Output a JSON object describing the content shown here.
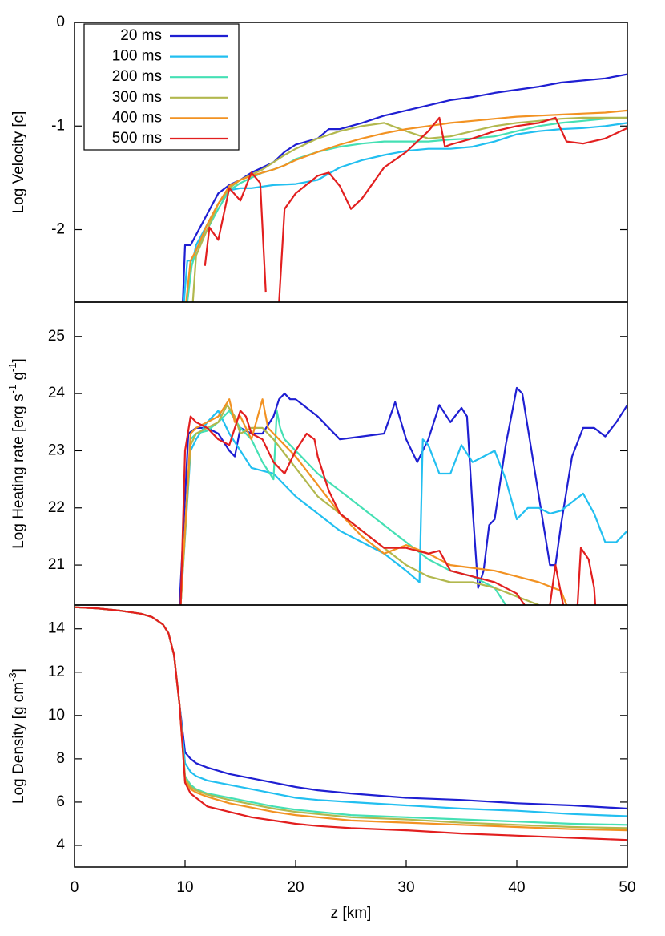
{
  "chart_data": [
    {
      "type": "line",
      "ylabel": "Log Velocity [c]",
      "xlim": [
        0,
        50
      ],
      "ylim": [
        -2.7,
        0
      ],
      "yticks": [
        0,
        -1,
        -2
      ],
      "legend": "upper left",
      "series": [
        {
          "name": "20 ms",
          "color": "#1f1fd2",
          "x": [
            9.8,
            10,
            10.5,
            11,
            12,
            13,
            14,
            15,
            16,
            17,
            18,
            19,
            20,
            22,
            23,
            24,
            26,
            28,
            30,
            32,
            34,
            36,
            38,
            40,
            42,
            44,
            46,
            48,
            50
          ],
          "values": [
            -2.7,
            -2.15,
            -2.15,
            -2.05,
            -1.85,
            -1.65,
            -1.57,
            -1.52,
            -1.45,
            -1.4,
            -1.35,
            -1.25,
            -1.18,
            -1.12,
            -1.03,
            -1.03,
            -0.97,
            -0.9,
            -0.85,
            -0.8,
            -0.75,
            -0.72,
            -0.68,
            -0.65,
            -0.62,
            -0.58,
            -0.56,
            -0.54,
            -0.5
          ]
        },
        {
          "name": "100 ms",
          "color": "#22bff0",
          "x": [
            9.9,
            10.2,
            10.7,
            11,
            12,
            13,
            14,
            15,
            16,
            18,
            20,
            22,
            24,
            26,
            28,
            30,
            32,
            34,
            36,
            38,
            40,
            42,
            44,
            46,
            48,
            50
          ],
          "values": [
            -2.7,
            -2.3,
            -2.3,
            -2.15,
            -1.95,
            -1.75,
            -1.62,
            -1.6,
            -1.6,
            -1.57,
            -1.56,
            -1.52,
            -1.4,
            -1.33,
            -1.28,
            -1.24,
            -1.22,
            -1.22,
            -1.2,
            -1.15,
            -1.08,
            -1.05,
            -1.03,
            -1.02,
            -1.0,
            -0.97
          ]
        },
        {
          "name": "200 ms",
          "color": "#45e0b4",
          "x": [
            10.2,
            10.6,
            11,
            12,
            13,
            14,
            15,
            16,
            17,
            18,
            19,
            20,
            22,
            24,
            26,
            28,
            30,
            32,
            34,
            36,
            38,
            40,
            42,
            44,
            46,
            48,
            50
          ],
          "values": [
            -2.7,
            -2.35,
            -2.2,
            -2.0,
            -1.8,
            -1.62,
            -1.55,
            -1.5,
            -1.45,
            -1.42,
            -1.38,
            -1.32,
            -1.25,
            -1.2,
            -1.17,
            -1.15,
            -1.15,
            -1.15,
            -1.13,
            -1.12,
            -1.1,
            -1.05,
            -1.0,
            -0.97,
            -0.95,
            -0.93,
            -0.92
          ]
        },
        {
          "name": "300 ms",
          "color": "#b2b84e",
          "x": [
            10.7,
            11,
            12,
            13,
            14,
            15,
            16,
            17,
            18,
            19,
            20,
            22,
            24,
            26,
            28,
            30,
            32,
            34,
            36,
            38,
            40,
            42,
            44,
            46,
            48,
            50
          ],
          "values": [
            -2.7,
            -2.25,
            -2.0,
            -1.75,
            -1.6,
            -1.52,
            -1.47,
            -1.42,
            -1.35,
            -1.28,
            -1.22,
            -1.12,
            -1.05,
            -1.0,
            -0.97,
            -1.05,
            -1.12,
            -1.1,
            -1.05,
            -1.0,
            -0.97,
            -0.95,
            -0.93,
            -0.92,
            -0.92,
            -0.92
          ]
        },
        {
          "name": "400 ms",
          "color": "#f29222",
          "x": [
            10.1,
            10.5,
            11,
            12,
            13,
            14,
            15,
            16,
            17,
            18,
            19,
            20,
            22,
            24,
            26,
            28,
            30,
            32,
            34,
            36,
            38,
            40,
            42,
            44,
            46,
            48,
            50
          ],
          "values": [
            -2.7,
            -2.3,
            -2.2,
            -1.95,
            -1.75,
            -1.58,
            -1.52,
            -1.48,
            -1.45,
            -1.42,
            -1.38,
            -1.33,
            -1.25,
            -1.18,
            -1.12,
            -1.07,
            -1.03,
            -1.0,
            -0.97,
            -0.95,
            -0.93,
            -0.91,
            -0.9,
            -0.89,
            -0.88,
            -0.87,
            -0.85
          ]
        },
        {
          "name": "500 ms",
          "color": "#e21f1f",
          "x": [
            11.8,
            12.2,
            13,
            14,
            15,
            16,
            16.8,
            17.3,
            17.4,
            18.5,
            19,
            20,
            22,
            23,
            24,
            25,
            26,
            28,
            30,
            32,
            33,
            33.5,
            34,
            36,
            38,
            40,
            42,
            43.5,
            44.5,
            46,
            48,
            50
          ],
          "values": [
            -2.35,
            -1.98,
            -2.1,
            -1.6,
            -1.72,
            -1.45,
            -1.55,
            -2.6,
            null,
            -2.7,
            -1.8,
            -1.65,
            -1.48,
            -1.45,
            -1.58,
            -1.8,
            -1.7,
            -1.4,
            -1.25,
            -1.05,
            -0.92,
            -1.2,
            -1.18,
            -1.12,
            -1.05,
            -1.0,
            -0.97,
            -0.92,
            -1.15,
            -1.17,
            -1.12,
            -1.02
          ]
        }
      ]
    },
    {
      "type": "line",
      "ylabel": [
        "Log Heating rate [erg s",
        "-1",
        " g",
        "-1",
        "]"
      ],
      "xlim": [
        0,
        50
      ],
      "ylim": [
        20.3,
        25.6
      ],
      "yticks": [
        21,
        22,
        23,
        24,
        25
      ],
      "series": [
        {
          "color": "#1f1fd2",
          "x": [
            9.5,
            10.3,
            11,
            12,
            13,
            14,
            14.5,
            15,
            16,
            17,
            18,
            18.5,
            19,
            19.5,
            20,
            22,
            24,
            26,
            28,
            29,
            30,
            31,
            32,
            33,
            34,
            35,
            35.5,
            36,
            36.5,
            37,
            37.5,
            38,
            39,
            40,
            40.5,
            41,
            42,
            43,
            43.5,
            44,
            45,
            46,
            47,
            48,
            49,
            50
          ],
          "values": [
            20.3,
            23.3,
            23.4,
            23.4,
            23.3,
            23.0,
            22.9,
            23.4,
            23.3,
            23.3,
            23.6,
            23.9,
            24.0,
            23.9,
            23.9,
            23.6,
            23.2,
            23.25,
            23.3,
            23.85,
            23.2,
            22.8,
            23.2,
            23.8,
            23.5,
            23.75,
            23.6,
            22.0,
            20.6,
            20.9,
            21.7,
            21.8,
            23.1,
            24.1,
            24.0,
            23.4,
            22.2,
            21.0,
            21.0,
            21.7,
            22.9,
            23.4,
            23.4,
            23.25,
            23.5,
            23.8
          ]
        },
        {
          "color": "#22bff0",
          "x": [
            9.6,
            10.5,
            11,
            12,
            13,
            14,
            15,
            16,
            17,
            18,
            20,
            22,
            24,
            26,
            28,
            30,
            31.2,
            31.5,
            32,
            33,
            34,
            35,
            36,
            37,
            38,
            39,
            40,
            41,
            42,
            43,
            44,
            45,
            46,
            47,
            48,
            49,
            50
          ],
          "values": [
            20.3,
            23.0,
            23.2,
            23.5,
            23.7,
            23.3,
            23.0,
            22.7,
            22.65,
            22.6,
            22.2,
            21.9,
            21.6,
            21.4,
            21.2,
            20.9,
            20.7,
            23.2,
            23.1,
            22.6,
            22.6,
            23.1,
            22.8,
            22.9,
            23.0,
            22.5,
            21.8,
            22.0,
            22.0,
            21.9,
            21.95,
            22.1,
            22.25,
            21.9,
            21.4,
            21.4,
            21.6
          ]
        },
        {
          "color": "#45e0b4",
          "x": [
            9.6,
            10.5,
            11,
            12,
            13,
            14,
            15,
            16,
            17,
            18,
            18.3,
            18.6,
            19,
            20,
            22,
            24,
            26,
            28,
            30,
            32,
            34,
            36,
            38,
            39
          ],
          "values": [
            20.3,
            23.2,
            23.3,
            23.35,
            23.5,
            23.7,
            23.4,
            23.2,
            22.8,
            22.5,
            23.7,
            23.4,
            23.2,
            23.0,
            22.6,
            22.3,
            22.0,
            21.7,
            21.4,
            21.1,
            20.9,
            20.8,
            20.6,
            20.3
          ]
        },
        {
          "color": "#b2b84e",
          "x": [
            9.6,
            10.5,
            11,
            12,
            13,
            13.8,
            14.5,
            15,
            16,
            17,
            18,
            20,
            22,
            24,
            26,
            28,
            30,
            32,
            34,
            36,
            38,
            40,
            42
          ],
          "values": [
            20.3,
            23.1,
            23.3,
            23.4,
            23.5,
            23.8,
            23.6,
            23.3,
            23.4,
            23.4,
            23.2,
            22.7,
            22.2,
            21.9,
            21.6,
            21.3,
            21.0,
            20.8,
            20.7,
            20.7,
            20.6,
            20.45,
            20.3
          ]
        },
        {
          "color": "#f29222",
          "x": [
            9.6,
            10.5,
            11,
            12,
            13,
            14,
            14.5,
            15,
            16,
            17,
            17.5,
            18,
            19,
            20,
            22,
            24,
            26,
            28,
            30,
            32,
            34,
            36,
            38,
            40,
            42,
            44,
            44.5
          ],
          "values": [
            20.3,
            23.3,
            23.4,
            23.5,
            23.6,
            23.9,
            23.5,
            23.6,
            23.2,
            23.9,
            23.4,
            23.3,
            23.1,
            22.9,
            22.4,
            21.9,
            21.5,
            21.2,
            21.35,
            21.2,
            21.0,
            20.95,
            20.9,
            20.8,
            20.7,
            20.55,
            20.3
          ]
        },
        {
          "color": "#e21f1f",
          "x": [
            9.6,
            10,
            10.5,
            11,
            12,
            13,
            14,
            15,
            15.5,
            16,
            17,
            18,
            19,
            20,
            21,
            21.7,
            22,
            23,
            24,
            26,
            28,
            30,
            32,
            33,
            34,
            36,
            38,
            40,
            40.7,
            41,
            43,
            43.5,
            44.2,
            44.5,
            45.5,
            45.8,
            46.5,
            47,
            47.1
          ],
          "values": [
            20.3,
            23.0,
            23.6,
            23.5,
            23.4,
            23.2,
            23.1,
            23.7,
            23.6,
            23.3,
            23.2,
            22.8,
            22.6,
            23.0,
            23.3,
            23.2,
            22.9,
            22.3,
            21.9,
            21.6,
            21.3,
            21.3,
            21.2,
            21.25,
            20.9,
            20.8,
            20.7,
            20.5,
            20.3,
            null,
            20.3,
            21.0,
            20.3,
            null,
            20.3,
            21.3,
            21.1,
            20.6,
            20.3
          ]
        }
      ]
    },
    {
      "type": "line",
      "ylabel": [
        "Log Density [g cm",
        "-3",
        "]"
      ],
      "xlabel": "z [km]",
      "xlim": [
        0,
        50
      ],
      "xticks": [
        0,
        10,
        20,
        30,
        40,
        50
      ],
      "ylim": [
        3,
        15.1
      ],
      "yticks": [
        4,
        6,
        8,
        10,
        12,
        14
      ],
      "x": [
        0,
        2,
        4,
        6,
        7,
        8,
        8.5,
        9,
        9.5,
        10,
        10.5,
        11,
        12,
        14,
        16,
        18,
        20,
        22,
        25,
        30,
        35,
        40,
        45,
        50
      ],
      "series": [
        {
          "color": "#1f1fd2",
          "values": [
            15.0,
            14.95,
            14.85,
            14.7,
            14.55,
            14.2,
            13.8,
            12.8,
            10.5,
            8.3,
            8.0,
            7.8,
            7.6,
            7.3,
            7.1,
            6.9,
            6.7,
            6.55,
            6.4,
            6.2,
            6.1,
            5.95,
            5.85,
            5.7
          ]
        },
        {
          "color": "#22bff0",
          "values": [
            15.0,
            14.95,
            14.85,
            14.7,
            14.55,
            14.2,
            13.8,
            12.8,
            10.5,
            7.8,
            7.4,
            7.2,
            7.0,
            6.8,
            6.6,
            6.4,
            6.2,
            6.1,
            6.0,
            5.85,
            5.7,
            5.6,
            5.45,
            5.35
          ]
        },
        {
          "color": "#45e0b4",
          "values": [
            15.0,
            14.95,
            14.85,
            14.7,
            14.55,
            14.2,
            13.8,
            12.8,
            10.5,
            7.2,
            6.8,
            6.6,
            6.4,
            6.2,
            6.0,
            5.8,
            5.65,
            5.55,
            5.4,
            5.3,
            5.2,
            5.1,
            5.0,
            4.95
          ]
        },
        {
          "color": "#b2b84e",
          "values": [
            15.0,
            14.95,
            14.85,
            14.7,
            14.55,
            14.2,
            13.8,
            12.8,
            10.5,
            7.1,
            6.7,
            6.55,
            6.35,
            6.1,
            5.9,
            5.7,
            5.55,
            5.45,
            5.3,
            5.2,
            5.05,
            4.95,
            4.85,
            4.8
          ]
        },
        {
          "color": "#f29222",
          "values": [
            15.0,
            14.95,
            14.85,
            14.7,
            14.55,
            14.2,
            13.8,
            12.8,
            10.5,
            7.0,
            6.6,
            6.45,
            6.25,
            5.95,
            5.75,
            5.55,
            5.4,
            5.3,
            5.15,
            5.05,
            4.95,
            4.85,
            4.75,
            4.7
          ]
        },
        {
          "color": "#e21f1f",
          "values": [
            15.0,
            14.95,
            14.85,
            14.7,
            14.55,
            14.2,
            13.8,
            12.8,
            10.5,
            6.9,
            6.4,
            6.2,
            5.8,
            5.55,
            5.3,
            5.15,
            5.0,
            4.9,
            4.8,
            4.7,
            4.55,
            4.45,
            4.35,
            4.25
          ]
        }
      ]
    }
  ]
}
